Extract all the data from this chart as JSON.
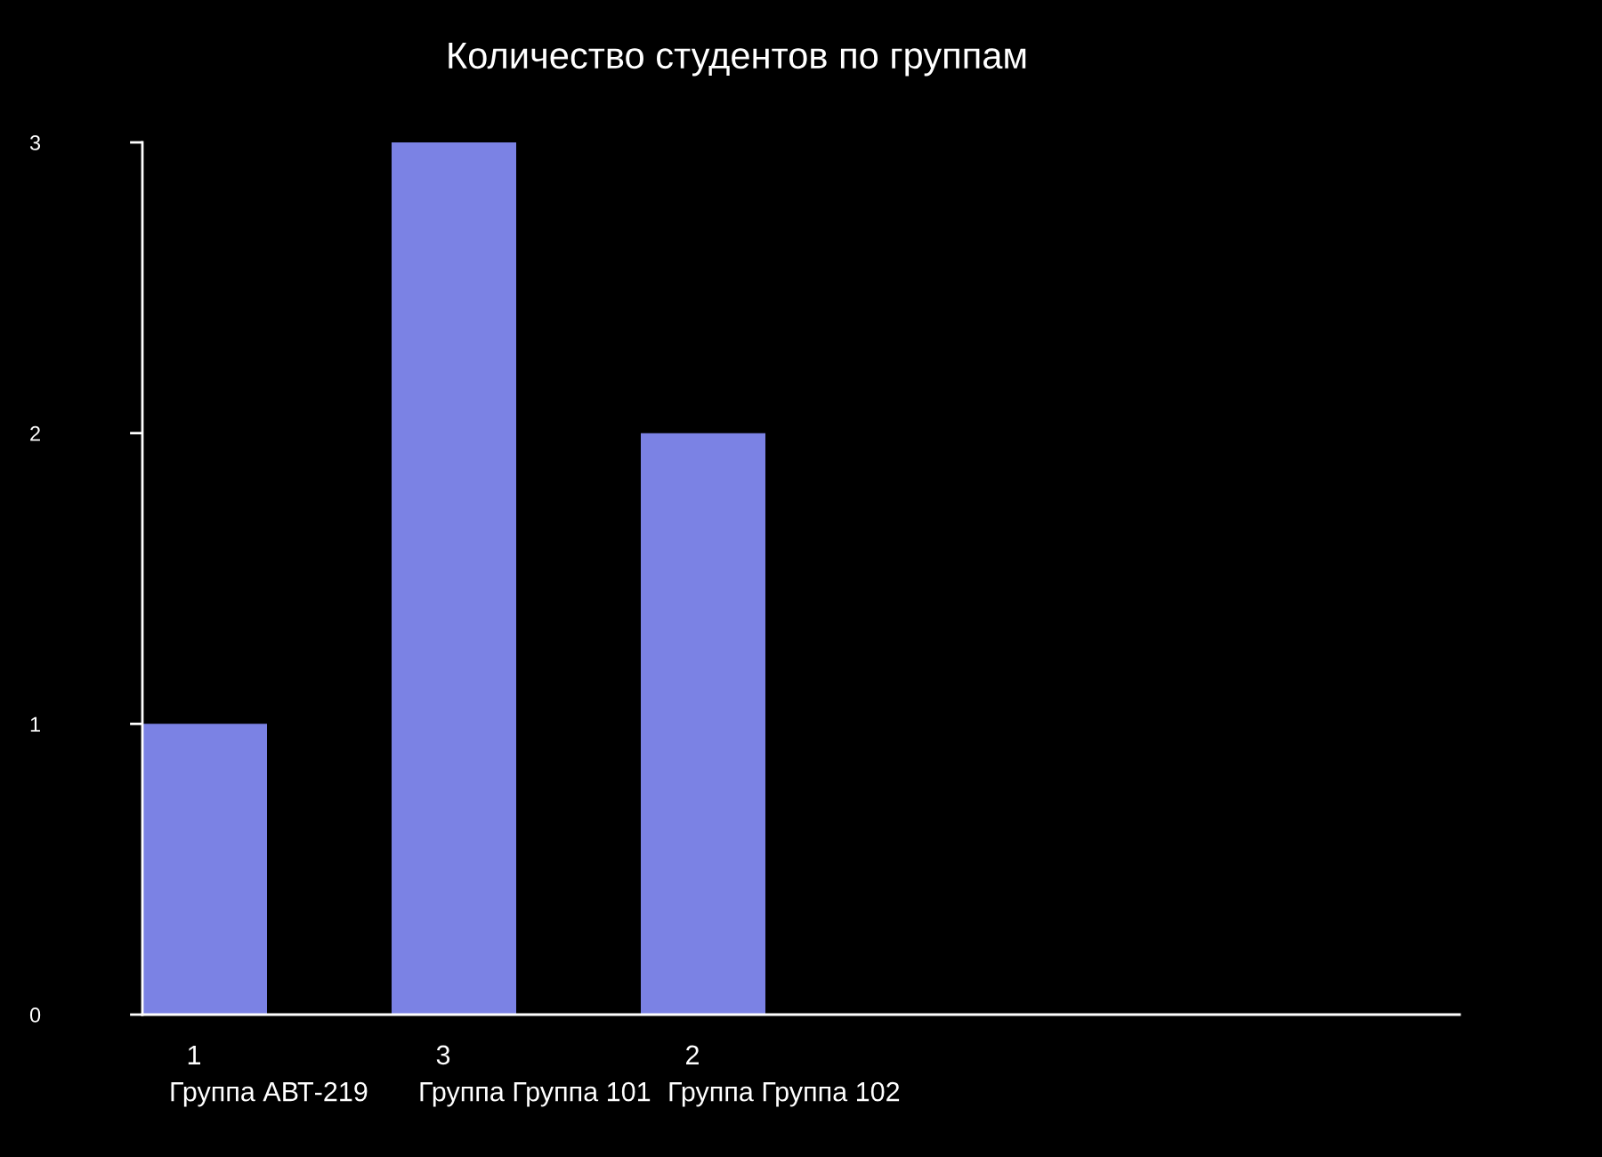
{
  "chart_data": {
    "type": "bar",
    "title": "Количество студентов по группам",
    "categories": [
      "Группа АВТ-219",
      "Группа Группа 101",
      "Группа Группа 102"
    ],
    "values": [
      1,
      3,
      2
    ],
    "color": "#7b82e4",
    "data_labels": true,
    "ylim": [
      0,
      3
    ],
    "yticks": [
      0,
      1,
      2,
      3
    ],
    "grid": false,
    "legend": false
  }
}
